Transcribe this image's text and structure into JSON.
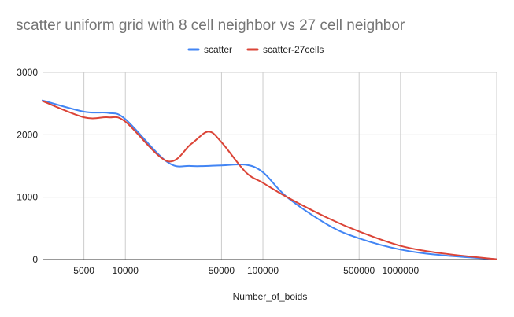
{
  "chart_data": {
    "type": "line",
    "title": "scatter uniform grid with 8 cell neighbor vs 27 cell neighbor",
    "xlabel": "Number_of_boids",
    "ylabel": "",
    "x_scale": "log",
    "x_ticks": [
      5000,
      10000,
      50000,
      100000,
      500000,
      1000000
    ],
    "x_tick_labels": [
      "5000",
      "10000",
      "50000",
      "100000",
      "500000",
      "1000000"
    ],
    "y_ticks": [
      0,
      1000,
      2000,
      3000
    ],
    "y_tick_labels": [
      "0",
      "1000",
      "2000",
      "3000"
    ],
    "xlim": [
      2500,
      5000000
    ],
    "ylim": [
      0,
      3000
    ],
    "grid": true,
    "legend_position": "top",
    "series": [
      {
        "name": "scatter",
        "color": "#4285f4",
        "x": [
          2500,
          5000,
          7500,
          10000,
          20000,
          30000,
          50000,
          75000,
          100000,
          150000,
          300000,
          500000,
          1000000,
          2000000,
          5000000
        ],
        "y": [
          2550,
          2370,
          2350,
          2250,
          1570,
          1500,
          1510,
          1520,
          1400,
          1000,
          550,
          340,
          160,
          70,
          5
        ]
      },
      {
        "name": "scatter-27cells",
        "color": "#db4437",
        "x": [
          2500,
          5000,
          7500,
          10000,
          20000,
          30000,
          40000,
          50000,
          75000,
          100000,
          150000,
          300000,
          500000,
          1000000,
          2000000,
          5000000
        ],
        "y": [
          2540,
          2280,
          2280,
          2210,
          1580,
          1850,
          2050,
          1880,
          1400,
          1230,
          1000,
          660,
          450,
          220,
          100,
          5
        ]
      }
    ]
  }
}
